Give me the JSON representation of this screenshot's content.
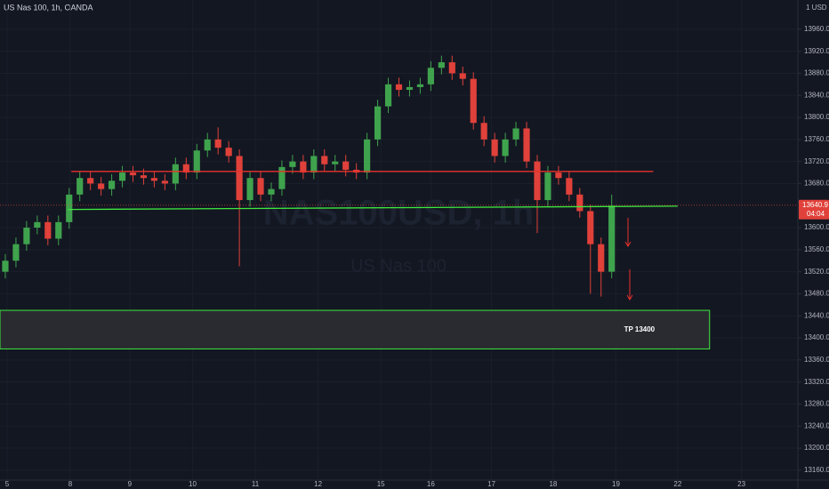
{
  "chart_data": {
    "type": "candlestick",
    "title": "US Nas 100, 1h, OANDA",
    "currency": "1 USD",
    "watermark": [
      "NAS100USD, 1h",
      "US Nas 100"
    ],
    "up_color": "#3fa34d",
    "down_color": "#e0413a",
    "open": [
      13520,
      13540,
      13570,
      13600,
      13610,
      13580,
      13610,
      13660,
      13690,
      13680,
      13670,
      13685,
      13700,
      13695,
      13690,
      13685,
      13680,
      13715,
      13700,
      13740,
      13760,
      13745,
      13730,
      13650,
      13690,
      13660,
      13670,
      13710,
      13720,
      13700,
      13730,
      13715,
      13720,
      13705,
      13700,
      13760,
      13820,
      13860,
      13850,
      13855,
      13860,
      13890,
      13900,
      13880,
      13870,
      13790,
      13760,
      13730,
      13760,
      13780,
      13720,
      13650,
      13700,
      13690,
      13660,
      13630,
      13570,
      13520
    ],
    "high": [
      13552,
      13582,
      13612,
      13622,
      13622,
      13622,
      13672,
      13702,
      13702,
      13692,
      13697,
      13712,
      13712,
      13707,
      13702,
      13697,
      13727,
      13727,
      13752,
      13772,
      13782,
      13757,
      13742,
      13702,
      13702,
      13682,
      13722,
      13732,
      13732,
      13742,
      13742,
      13732,
      13732,
      13717,
      13772,
      13832,
      13872,
      13872,
      13867,
      13872,
      13902,
      13912,
      13912,
      13892,
      13882,
      13802,
      13772,
      13772,
      13792,
      13792,
      13732,
      13712,
      13712,
      13702,
      13672,
      13642,
      13582,
      13660
    ],
    "low": [
      13508,
      13528,
      13558,
      13588,
      13568,
      13568,
      13598,
      13648,
      13668,
      13658,
      13658,
      13673,
      13683,
      13678,
      13673,
      13668,
      13668,
      13688,
      13688,
      13728,
      13733,
      13718,
      13530,
      13638,
      13648,
      13648,
      13658,
      13698,
      13688,
      13688,
      13703,
      13703,
      13693,
      13688,
      13688,
      13748,
      13808,
      13838,
      13838,
      13843,
      13848,
      13878,
      13868,
      13858,
      13778,
      13748,
      13718,
      13718,
      13748,
      13708,
      13590,
      13638,
      13678,
      13648,
      13618,
      13480,
      13475,
      13508
    ],
    "close": [
      13540,
      13570,
      13600,
      13610,
      13580,
      13610,
      13660,
      13690,
      13680,
      13670,
      13685,
      13700,
      13695,
      13690,
      13685,
      13680,
      13715,
      13700,
      13740,
      13760,
      13745,
      13730,
      13650,
      13690,
      13660,
      13670,
      13710,
      13720,
      13700,
      13730,
      13715,
      13720,
      13705,
      13700,
      13760,
      13820,
      13860,
      13850,
      13855,
      13860,
      13890,
      13900,
      13880,
      13870,
      13790,
      13760,
      13730,
      13760,
      13780,
      13720,
      13650,
      13700,
      13690,
      13660,
      13630,
      13570,
      13520,
      13640
    ],
    "xlim": [
      0,
      75
    ],
    "xticks": [
      {
        "value": 0.67,
        "label": "5"
      },
      {
        "value": 6.6,
        "label": "8"
      },
      {
        "value": 12.2,
        "label": "9"
      },
      {
        "value": 18.1,
        "label": "10"
      },
      {
        "value": 24.0,
        "label": "11"
      },
      {
        "value": 29.9,
        "label": "12"
      },
      {
        "value": 35.8,
        "label": "15"
      },
      {
        "value": 40.5,
        "label": "16"
      },
      {
        "value": 46.2,
        "label": "17"
      },
      {
        "value": 52.0,
        "label": "18"
      },
      {
        "value": 57.9,
        "label": "19"
      },
      {
        "value": 63.7,
        "label": "22"
      },
      {
        "value": 69.7,
        "label": "23"
      }
    ],
    "ylim": [
      13142,
      14013
    ],
    "yticks": [
      {
        "value": 13160,
        "label": "13160.0"
      },
      {
        "value": 13200,
        "label": "13200.0"
      },
      {
        "value": 13240,
        "label": "13240.0"
      },
      {
        "value": 13280,
        "label": "13280.0"
      },
      {
        "value": 13320,
        "label": "13320.0"
      },
      {
        "value": 13360,
        "label": "13360.0"
      },
      {
        "value": 13400,
        "label": "13400.0"
      },
      {
        "value": 13440,
        "label": "13440.0"
      },
      {
        "value": 13480,
        "label": "13480.0"
      },
      {
        "value": 13520,
        "label": "13520.0"
      },
      {
        "value": 13560,
        "label": "13560.0"
      },
      {
        "value": 13600,
        "label": "13600.0"
      },
      {
        "value": 13680,
        "label": "13680.0"
      },
      {
        "value": 13720,
        "label": "13720.0"
      },
      {
        "value": 13760,
        "label": "13760.0"
      },
      {
        "value": 13800,
        "label": "13800.0"
      },
      {
        "value": 13840,
        "label": "13840.0"
      },
      {
        "value": 13880,
        "label": "13880.0"
      },
      {
        "value": 13920,
        "label": "13920.0"
      },
      {
        "value": 13960,
        "label": "13960.0"
      }
    ],
    "last_price": 13640.9,
    "countdown": "04:04",
    "levels": [
      {
        "color": "#e8312c",
        "x": [
          6.7,
          61.4
        ],
        "y": [
          13702,
          13702
        ]
      },
      {
        "color": "#3ee83e",
        "x": [
          6.4,
          63.7
        ],
        "y": [
          13633,
          13639
        ]
      }
    ],
    "zone": {
      "x": [
        0,
        66.7
      ],
      "y": [
        13380,
        13450
      ],
      "color": "#3ee83e",
      "label": "TP 13400"
    }
  }
}
